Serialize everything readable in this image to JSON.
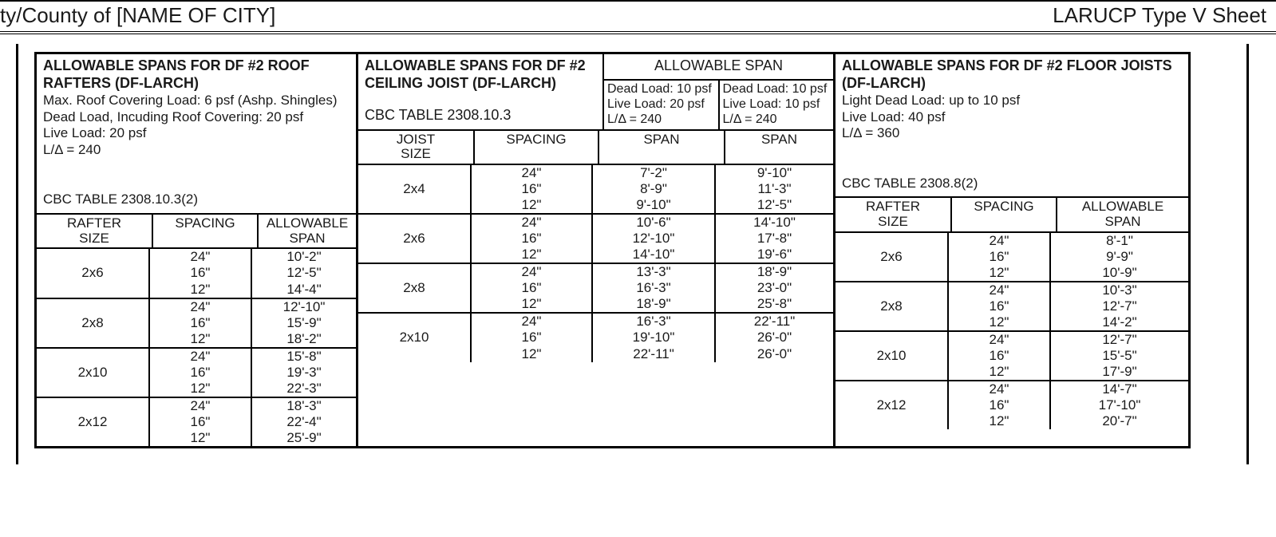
{
  "title_left": "ty/County of [NAME OF CITY]",
  "title_right": "LARUCP Type V Sheet",
  "rafters": {
    "title": "ALLOWABLE SPANS FOR DF #2 ROOF RAFTERS (DF-LARCH)",
    "notes": [
      "Max. Roof Covering Load: 6 psf (Ashp. Shingles)",
      "Dead Load, Incuding Roof Covering: 20 psf",
      "Live Load: 20 psf",
      "L/Δ = 240",
      "",
      "CBC TABLE 2308.10.3(2)"
    ],
    "columns": [
      "RAFTER\nSIZE",
      "SPACING",
      "ALLOWABLE\nSPAN"
    ],
    "groups": [
      {
        "size": "2x6",
        "rows": [
          [
            "24\"",
            "10'-2\""
          ],
          [
            "16\"",
            "12'-5\""
          ],
          [
            "12\"",
            "14'-4\""
          ]
        ]
      },
      {
        "size": "2x8",
        "rows": [
          [
            "24\"",
            "12'-10\""
          ],
          [
            "16\"",
            "15'-9\""
          ],
          [
            "12\"",
            "18'-2\""
          ]
        ]
      },
      {
        "size": "2x10",
        "rows": [
          [
            "24\"",
            "15'-8\""
          ],
          [
            "16\"",
            "19'-3\""
          ],
          [
            "12\"",
            "22'-3\""
          ]
        ]
      },
      {
        "size": "2x12",
        "rows": [
          [
            "24\"",
            "18'-3\""
          ],
          [
            "16\"",
            "22'-4\""
          ],
          [
            "12\"",
            "25'-9\""
          ]
        ]
      }
    ]
  },
  "ceiling": {
    "title": "ALLOWABLE SPANS FOR DF #2 CEILING JOIST (DF-LARCH)",
    "cbc": "CBC TABLE 2308.10.3",
    "allow_label": "ALLOWABLE SPAN",
    "load_a": "Dead Load: 10 psf\nLive Load: 20 psf\nL/Δ = 240",
    "load_b": "Dead Load: 10 psf\nLive Load: 10 psf\nL/Δ = 240",
    "columns": [
      "JOIST\nSIZE",
      "SPACING",
      "SPAN",
      "SPAN"
    ],
    "groups": [
      {
        "size": "2x4",
        "rows": [
          [
            "24\"",
            "7'-2\"",
            "9'-10\""
          ],
          [
            "16\"",
            "8'-9\"",
            "11'-3\""
          ],
          [
            "12\"",
            "9'-10\"",
            "12'-5\""
          ]
        ]
      },
      {
        "size": "2x6",
        "rows": [
          [
            "24\"",
            "10'-6\"",
            "14'-10\""
          ],
          [
            "16\"",
            "12'-10\"",
            "17'-8\""
          ],
          [
            "12\"",
            "14'-10\"",
            "19'-6\""
          ]
        ]
      },
      {
        "size": "2x8",
        "rows": [
          [
            "24\"",
            "13'-3\"",
            "18'-9\""
          ],
          [
            "16\"",
            "16'-3\"",
            "23'-0\""
          ],
          [
            "12\"",
            "18'-9\"",
            "25'-8\""
          ]
        ]
      },
      {
        "size": "2x10",
        "rows": [
          [
            "24\"",
            "16'-3\"",
            "22'-11\""
          ],
          [
            "16\"",
            "19'-10\"",
            "26'-0\""
          ],
          [
            "12\"",
            "22'-11\"",
            "26'-0\""
          ]
        ]
      }
    ]
  },
  "floor": {
    "title": "ALLOWABLE SPANS FOR DF #2 FLOOR JOISTS (DF-LARCH)",
    "notes": [
      "Light Dead Load: up to 10 psf",
      "Live Load: 40 psf",
      "L/Δ = 360",
      "",
      "CBC TABLE 2308.8(2)"
    ],
    "columns": [
      "RAFTER\nSIZE",
      "SPACING",
      "ALLOWABLE\nSPAN"
    ],
    "groups": [
      {
        "size": "2x6",
        "rows": [
          [
            "24\"",
            "8'-1\""
          ],
          [
            "16\"",
            "9'-9\""
          ],
          [
            "12\"",
            "10'-9\""
          ]
        ]
      },
      {
        "size": "2x8",
        "rows": [
          [
            "24\"",
            "10'-3\""
          ],
          [
            "16\"",
            "12'-7\""
          ],
          [
            "12\"",
            "14'-2\""
          ]
        ]
      },
      {
        "size": "2x10",
        "rows": [
          [
            "24\"",
            "12'-7\""
          ],
          [
            "16\"",
            "15'-5\""
          ],
          [
            "12\"",
            "17'-9\""
          ]
        ]
      },
      {
        "size": "2x12",
        "rows": [
          [
            "24\"",
            "14'-7\""
          ],
          [
            "16\"",
            "17'-10\""
          ],
          [
            "12\"",
            "20'-7\""
          ]
        ]
      }
    ]
  }
}
